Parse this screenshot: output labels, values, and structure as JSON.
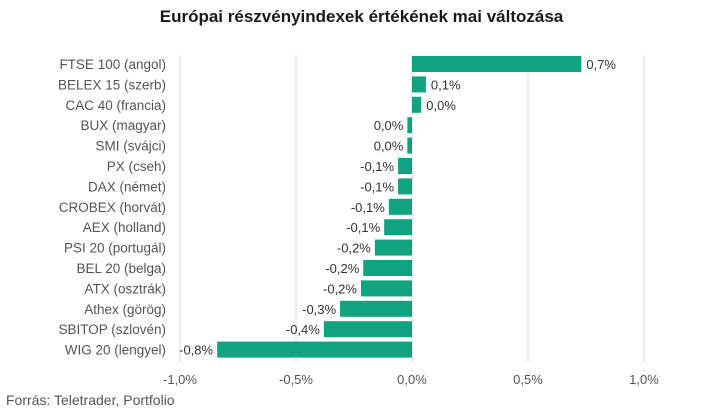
{
  "chart_data": {
    "type": "bar",
    "orientation": "horizontal",
    "title": "Európai részvényindexek értékének mai változása",
    "source": "Forrás: Teletrader, Portfolio",
    "bar_color": "#10a37f",
    "xlim": [
      -1.0,
      1.0
    ],
    "xticks": [
      -1.0,
      -0.5,
      0.0,
      0.5,
      1.0
    ],
    "xtick_labels": [
      "-1,0%",
      "-0,5%",
      "0,0%",
      "0,5%",
      "1,0%"
    ],
    "grid": true,
    "categories": [
      "FTSE 100 (angol)",
      "BELEX 15 (szerb)",
      "CAC 40 (francia)",
      "BUX (magyar)",
      "SMI (svájci)",
      "PX (cseh)",
      "DAX (német)",
      "CROBEX (horvát)",
      "AEX (holland)",
      "PSI 20 (portugál)",
      "BEL 20 (belga)",
      "ATX (osztrák)",
      "Athex (görög)",
      "SBITOP (szlovén)",
      "WIG 20 (lengyel)"
    ],
    "values": [
      0.73,
      0.06,
      0.04,
      -0.02,
      -0.02,
      -0.06,
      -0.06,
      -0.1,
      -0.12,
      -0.16,
      -0.21,
      -0.22,
      -0.31,
      -0.38,
      -0.84
    ],
    "value_labels": [
      "0,7%",
      "0,1%",
      "0,0%",
      "0,0%",
      "0,0%",
      "-0,1%",
      "-0,1%",
      "-0,1%",
      "-0,1%",
      "-0,2%",
      "-0,2%",
      "-0,2%",
      "-0,3%",
      "-0,4%",
      "-0,8%"
    ]
  }
}
